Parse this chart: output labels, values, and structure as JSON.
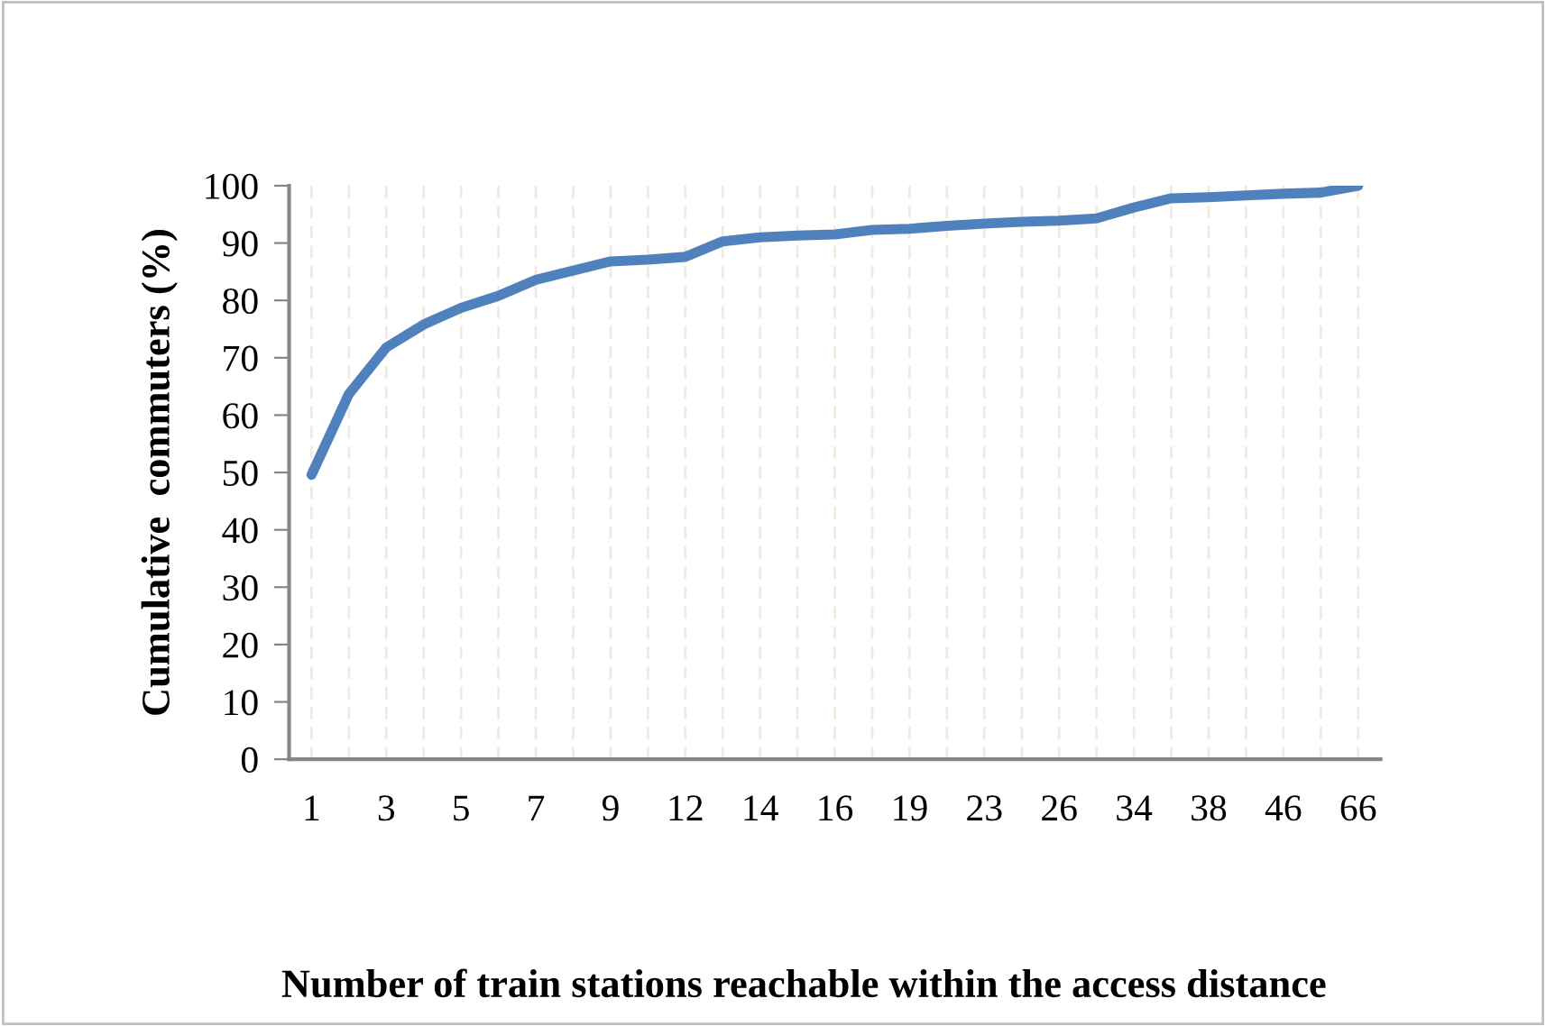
{
  "chart_data": {
    "type": "line",
    "xlabel": "Number of train stations reachable within the access distance",
    "ylabel": "Cumulative  commuters (%)",
    "categories": [
      "1",
      null,
      "3",
      null,
      "5",
      null,
      "7",
      null,
      "9",
      null,
      "12",
      null,
      "14",
      null,
      "16",
      null,
      "19",
      null,
      "23",
      null,
      "26",
      null,
      "34",
      null,
      "38",
      null,
      "46",
      null,
      "66"
    ],
    "series": [
      {
        "color": "#4f81bd",
        "values": [
          49.6,
          63.7,
          71.8,
          75.8,
          78.7,
          80.8,
          83.6,
          85.2,
          86.8,
          87.1,
          87.6,
          90.3,
          91.0,
          91.3,
          91.5,
          92.3,
          92.5,
          93.0,
          93.4,
          93.7,
          93.9,
          94.3,
          96.2,
          97.8,
          98.0,
          98.3,
          98.6,
          98.8,
          100
        ]
      }
    ],
    "ylim": [
      0,
      100
    ],
    "yticks": [
      0,
      10,
      20,
      30,
      40,
      50,
      60,
      70,
      80,
      90,
      100
    ],
    "grid": "x",
    "marker": "none",
    "line_style": "solid"
  }
}
